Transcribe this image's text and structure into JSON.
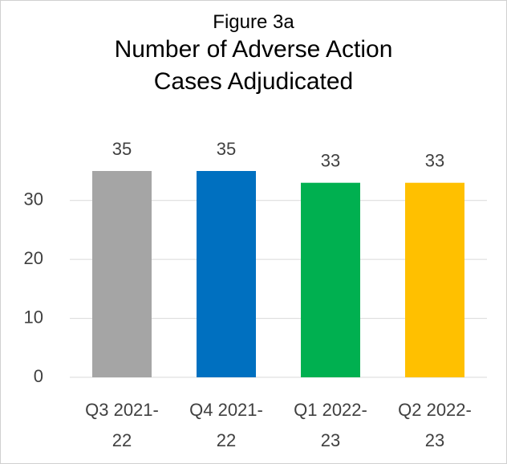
{
  "chart_data": {
    "type": "bar",
    "title": "Figure 3a",
    "subtitle": "Number of Adverse Action Cases Adjudicated",
    "categories": [
      "Q3 2021-22",
      "Q4 2021-22",
      "Q1 2022-23",
      "Q2 2022-23"
    ],
    "values": [
      35,
      35,
      33,
      33
    ],
    "colors": [
      "#a5a5a5",
      "#0070c0",
      "#00b050",
      "#ffc000"
    ],
    "ylim": [
      0,
      35
    ],
    "yticks": [
      0,
      10,
      20,
      30
    ],
    "grid": true
  }
}
